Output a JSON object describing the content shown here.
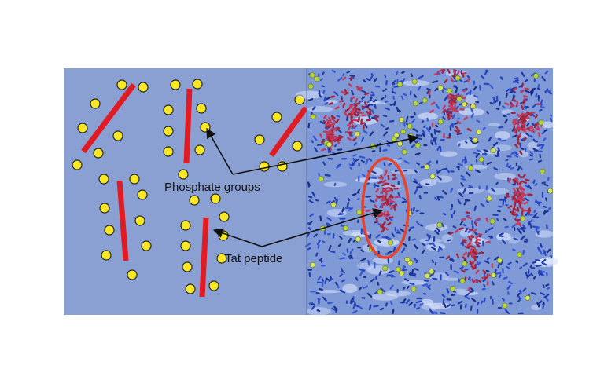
{
  "labels": {
    "phosphate": "Phosphate groups",
    "tat": "Tat peptide"
  },
  "colors": {
    "left_panel": "#8AA0D2",
    "right_panel": "#7F9AD6",
    "phosphate": "#F7E823",
    "peptide": "#E01B24",
    "highlight": "#E8442B",
    "arrow": "#111111"
  }
}
